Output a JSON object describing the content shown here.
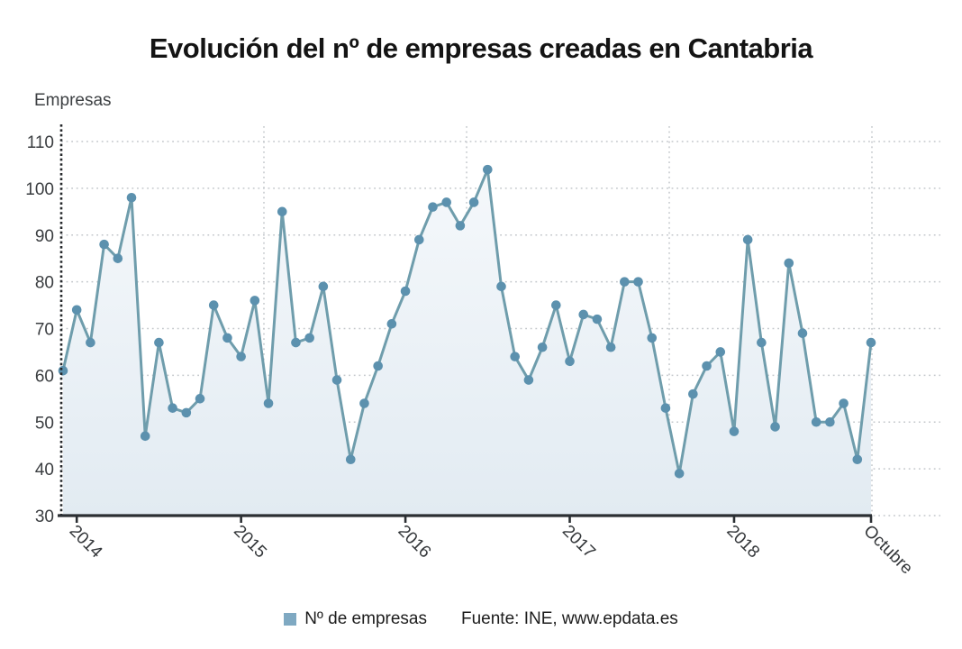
{
  "header": {
    "title": "Evolución del nº de empresas creadas en Cantabria"
  },
  "axis_label": "Empresas",
  "legend": {
    "series_label": "Nº de empresas",
    "source": "Fuente: INE, www.epdata.es"
  },
  "chart_data": {
    "type": "line",
    "title": "Evolución del nº de empresas creadas en Cantabria",
    "ylabel": "Empresas",
    "xlabel": "",
    "legend_position": "bottom-center",
    "grid": {
      "horizontal": "dotted",
      "vertical": "dotted quarter lines"
    },
    "ylim": [
      30,
      110
    ],
    "y_ticks": [
      30,
      40,
      50,
      60,
      70,
      80,
      90,
      100,
      110
    ],
    "x_tick_labels": [
      "2014",
      "2015",
      "2016",
      "2017",
      "2018",
      "Octubre"
    ],
    "x_tick_point_indices": [
      1,
      13,
      25,
      37,
      49,
      59
    ],
    "series": [
      {
        "name": "Nº de empresas",
        "values": [
          61,
          74,
          67,
          88,
          85,
          98,
          47,
          67,
          53,
          52,
          55,
          75,
          68,
          64,
          76,
          54,
          95,
          67,
          68,
          79,
          59,
          42,
          54,
          62,
          71,
          78,
          89,
          96,
          97,
          92,
          97,
          104,
          79,
          64,
          59,
          66,
          75,
          63,
          73,
          72,
          66,
          80,
          80,
          68,
          53,
          39,
          56,
          62,
          65,
          48,
          89,
          67,
          49,
          84,
          69,
          50,
          50,
          54,
          42,
          67
        ]
      }
    ],
    "colors": {
      "line": "#6f9dac",
      "marker": "#5c91ae",
      "area_top": "#f5f8fb",
      "area_bottom": "#e2ebf2",
      "grid": "#c3c7cb",
      "axis": "#2b2f33",
      "tick_text": "#3a3d40",
      "legend_swatch": "#7fa9c2"
    }
  }
}
